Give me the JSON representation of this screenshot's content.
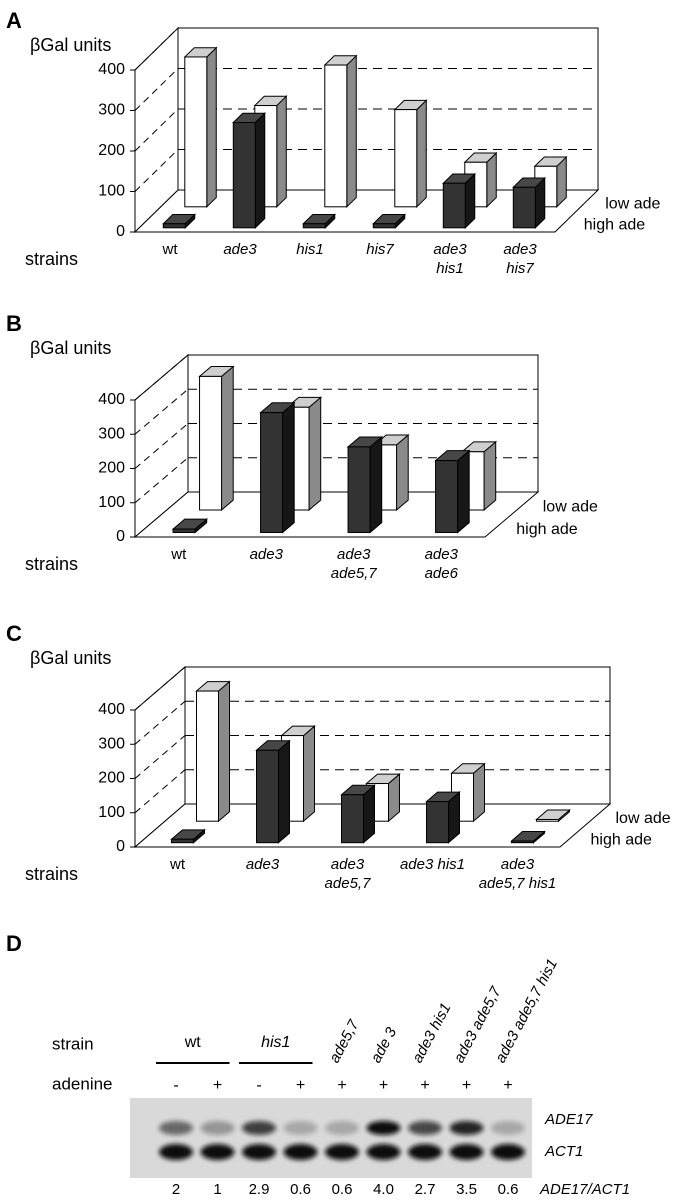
{
  "chart_data": [
    {
      "type": "bar3d",
      "panel": "A",
      "title": "βGal units",
      "x_label": "strains",
      "categories": [
        "wt",
        "ade3",
        "his1",
        "his7",
        "ade3\nhis1",
        "ade3\nhis7"
      ],
      "series": [
        {
          "name": "low ade",
          "color": "#ffffff",
          "values": [
            370,
            250,
            350,
            240,
            110,
            100
          ]
        },
        {
          "name": "high ade",
          "color": "#333333",
          "values": [
            10,
            260,
            10,
            10,
            110,
            100
          ]
        }
      ],
      "ylim": [
        0,
        400
      ],
      "yticks": [
        0,
        100,
        200,
        300,
        400
      ],
      "grid": true
    },
    {
      "type": "bar3d",
      "panel": "B",
      "title": "βGal units",
      "x_label": "strains",
      "categories": [
        "wt",
        "ade3",
        "ade3\nade5,7",
        "ade3\nade6"
      ],
      "series": [
        {
          "name": "low ade",
          "color": "#ffffff",
          "values": [
            390,
            300,
            190,
            170
          ]
        },
        {
          "name": "high ade",
          "color": "#333333",
          "values": [
            10,
            350,
            250,
            210
          ]
        }
      ],
      "ylim": [
        0,
        400
      ],
      "yticks": [
        0,
        100,
        200,
        300,
        400
      ],
      "grid": true
    },
    {
      "type": "bar3d",
      "panel": "C",
      "title": "βGal units",
      "x_label": "strains",
      "categories": [
        "wt",
        "ade3",
        "ade3\nade5,7",
        "ade3 his1",
        "ade3\nade5,7 his1"
      ],
      "series": [
        {
          "name": "low ade",
          "color": "#ffffff",
          "values": [
            380,
            250,
            110,
            140,
            5
          ]
        },
        {
          "name": "high ade",
          "color": "#333333",
          "values": [
            10,
            270,
            140,
            120,
            5
          ]
        }
      ],
      "ylim": [
        0,
        400
      ],
      "yticks": [
        0,
        100,
        200,
        300,
        400
      ],
      "grid": true
    }
  ],
  "blot": {
    "panel": "D",
    "strain_label": "strain",
    "adenine_label": "adenine",
    "groups": [
      "wt",
      "his1"
    ],
    "rotated_strains": [
      "ade5,7",
      "ade 3",
      "ade3 his1",
      "ade3 ade5,7",
      "ade3 ade5,7 his1"
    ],
    "adenine": [
      "-",
      "+",
      "-",
      "+",
      "+",
      "+",
      "+",
      "+",
      "+"
    ],
    "bands": [
      "ADE17",
      "ACT1"
    ],
    "ratio_label": "ADE17/ACT1",
    "ratio": [
      2,
      1,
      2.9,
      0.6,
      0.6,
      4.0,
      2.7,
      3.5,
      0.6
    ],
    "ratio_labels": [
      "2",
      "1",
      "2.9",
      "0.6",
      "0.6",
      "4.0",
      "2.7",
      "3.5",
      "0.6"
    ]
  }
}
